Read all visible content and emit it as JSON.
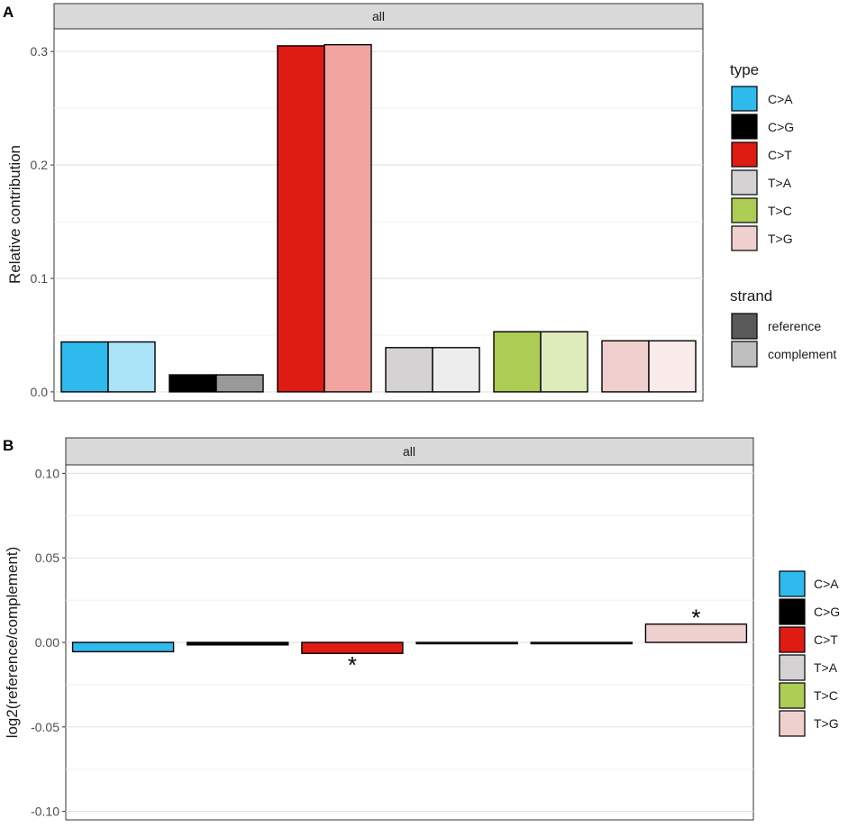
{
  "panel_labels": [
    "A",
    "B"
  ],
  "colors": {
    "C>A": "#2EBAED",
    "C>G": "#000000",
    "C>T": "#DE1C14",
    "T>A": "#D4D2D2",
    "T>C": "#ADCC54",
    "T>G": "#F0D0CE"
  },
  "chart_data": [
    {
      "type": "bar",
      "panel": "A",
      "facet_label": "all",
      "ylabel": "Relative contribution",
      "xlabel": "",
      "ylim": [
        -0.008,
        0.32
      ],
      "yticks": [
        0.0,
        0.1,
        0.2,
        0.3
      ],
      "ytick_labels": [
        "0.0",
        "0.1",
        "0.2",
        "0.3"
      ],
      "categories": [
        "C>A",
        "C>G",
        "C>T",
        "T>A",
        "T>C",
        "T>G"
      ],
      "series": [
        {
          "name": "reference",
          "values": [
            0.044,
            0.015,
            0.305,
            0.039,
            0.053,
            0.045
          ]
        },
        {
          "name": "complement",
          "values": [
            0.044,
            0.015,
            0.306,
            0.039,
            0.053,
            0.045
          ]
        }
      ],
      "grid": true,
      "legend": {
        "placement": "right",
        "type_title": "type",
        "type_items": [
          "C>A",
          "C>G",
          "C>T",
          "T>A",
          "T>C",
          "T>G"
        ],
        "strand_title": "strand",
        "strand_items": [
          "reference",
          "complement"
        ]
      }
    },
    {
      "type": "bar",
      "panel": "B",
      "facet_label": "all",
      "ylabel": "log2(reference/complement)",
      "xlabel": "",
      "ylim": [
        -0.105,
        0.105
      ],
      "yticks": [
        0.1,
        0.05,
        0.0,
        -0.05,
        -0.1
      ],
      "ytick_labels": [
        "0.10",
        "0.05",
        "0.00",
        "-0.05",
        "-0.10"
      ],
      "categories": [
        "C>A",
        "C>G",
        "C>T",
        "T>A",
        "T>C",
        "T>G"
      ],
      "values": [
        -0.0055,
        -0.0015,
        -0.0065,
        -0.0003,
        -0.0008,
        0.0108
      ],
      "significance": [
        "",
        "",
        "*",
        "",
        "",
        "*"
      ],
      "grid": true,
      "legend": {
        "placement": "right",
        "items": [
          "C>A",
          "C>G",
          "C>T",
          "T>A",
          "T>C",
          "T>G"
        ]
      }
    }
  ]
}
